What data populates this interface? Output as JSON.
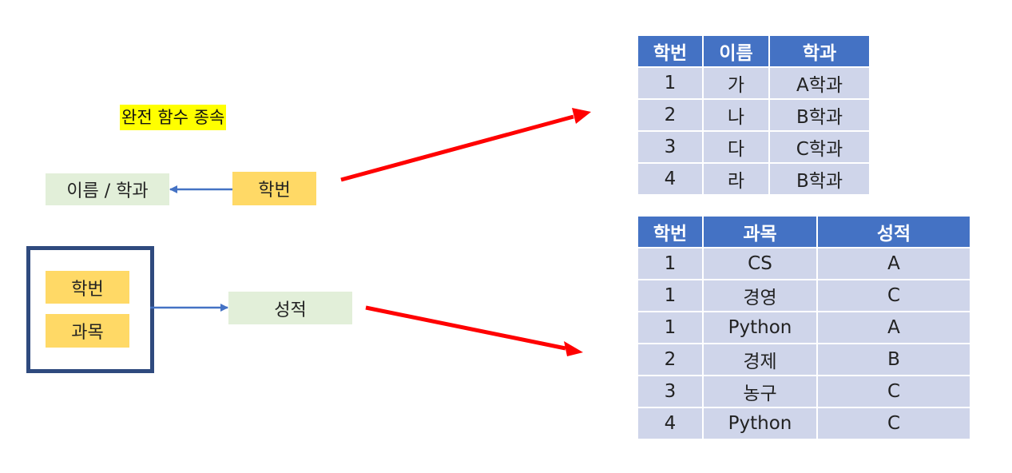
{
  "title": "완전 함수 종속",
  "left": {
    "dependent_1": "이름 / 학과",
    "determinant_1": "학번",
    "composite_key": [
      "학번",
      "과목"
    ],
    "dependent_2": "성적"
  },
  "colors": {
    "title_highlight": "#ffff00",
    "green_box": "#e2efd9",
    "yellow_box": "#ffd966",
    "frame_border": "#2f4a7e",
    "small_arrow": "#4472c4",
    "big_arrow": "#ff0000",
    "table_header": "#4472c4",
    "table_cell": "#cfd5ea"
  },
  "student_table": {
    "headers": [
      "학번",
      "이름",
      "학과"
    ],
    "rows": [
      [
        "1",
        "가",
        "A학과"
      ],
      [
        "2",
        "나",
        "B학과"
      ],
      [
        "3",
        "다",
        "C학과"
      ],
      [
        "4",
        "라",
        "B학과"
      ]
    ]
  },
  "grade_table": {
    "headers": [
      "학번",
      "과목",
      "성적"
    ],
    "rows": [
      [
        "1",
        "CS",
        "A"
      ],
      [
        "1",
        "경영",
        "C"
      ],
      [
        "1",
        "Python",
        "A"
      ],
      [
        "2",
        "경제",
        "B"
      ],
      [
        "3",
        "농구",
        "C"
      ],
      [
        "4",
        "Python",
        "C"
      ]
    ]
  }
}
